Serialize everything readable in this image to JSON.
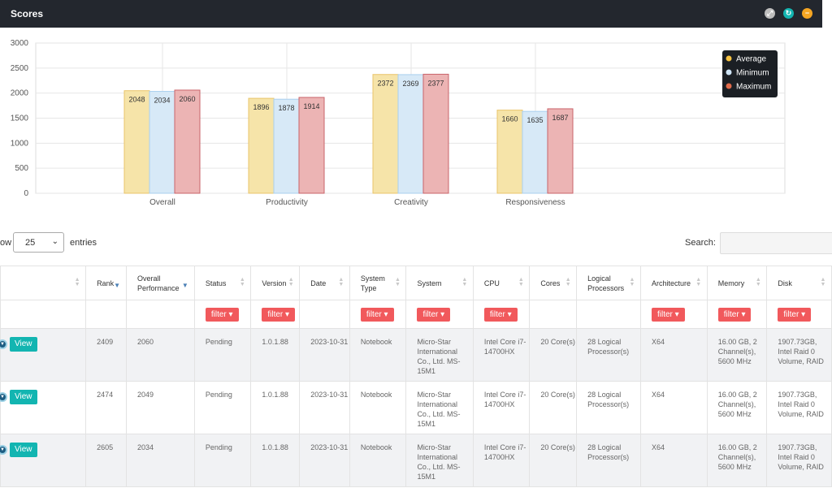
{
  "header": {
    "title": "Scores",
    "icons": [
      "expand-icon",
      "refresh-icon",
      "minimize-icon"
    ],
    "icon_colors": [
      "#bdbdbd",
      "#13b5b1",
      "#f5a623"
    ]
  },
  "chart_data": {
    "type": "bar",
    "categories": [
      "Overall",
      "Productivity",
      "Creativity",
      "Responsiveness"
    ],
    "series": [
      {
        "name": "Average",
        "values": [
          2048,
          1896,
          2372,
          1660
        ],
        "fill": "#f6e4a9",
        "stroke": "#e9c46a",
        "dot": "#f6c242"
      },
      {
        "name": "Minimum",
        "values": [
          2034,
          1878,
          2369,
          1635
        ],
        "fill": "#d7e9f7",
        "stroke": "#a9cfee",
        "dot": "#cfe4f5"
      },
      {
        "name": "Maximum",
        "values": [
          2060,
          1914,
          2377,
          1687
        ],
        "fill": "#ecb4b4",
        "stroke": "#c9636a",
        "dot": "#e06a4a"
      }
    ],
    "yticks": [
      0,
      500,
      1000,
      1500,
      2000,
      2500,
      3000
    ],
    "ylim": [
      0,
      3000
    ],
    "grid": true,
    "legend_position": "top-right"
  },
  "table": {
    "show_label": "ow",
    "page_size": "25",
    "entries_label": "entries",
    "search_label": "Search:",
    "filter_label": "filter",
    "view_label": "View",
    "columns": [
      {
        "key": "rank",
        "label": "Rank",
        "sort": "desc"
      },
      {
        "key": "overall",
        "label": "Overall Performance",
        "sort": "desc"
      },
      {
        "key": "status",
        "label": "Status",
        "sort": "both",
        "filter": true
      },
      {
        "key": "version",
        "label": "Version",
        "sort": "both",
        "filter": true
      },
      {
        "key": "date",
        "label": "Date",
        "sort": "both"
      },
      {
        "key": "system_type",
        "label": "System Type",
        "sort": "both",
        "filter": true
      },
      {
        "key": "system",
        "label": "System",
        "sort": "both",
        "filter": true
      },
      {
        "key": "cpu",
        "label": "CPU",
        "sort": "both",
        "filter": true
      },
      {
        "key": "cores",
        "label": "Cores",
        "sort": "both"
      },
      {
        "key": "logical",
        "label": "Logical Processors",
        "sort": "both"
      },
      {
        "key": "arch",
        "label": "Architecture",
        "sort": "both",
        "filter": true
      },
      {
        "key": "memory",
        "label": "Memory",
        "sort": "both",
        "filter": true
      },
      {
        "key": "disk",
        "label": "Disk",
        "sort": "both",
        "filter": true
      }
    ],
    "rows": [
      {
        "rank": "2409",
        "overall": "2060",
        "status": "Pending",
        "version": "1.0.1.88",
        "date": "2023-10-31",
        "system_type": "Notebook",
        "system": "Micro-Star International Co., Ltd. MS-15M1",
        "cpu": "Intel Core i7-14700HX",
        "cores": "20 Core(s)",
        "logical": "28 Logical Processor(s)",
        "arch": "X64",
        "memory": "16.00 GB, 2 Channel(s), 5600 MHz",
        "disk": "1907.73GB, Intel Raid 0 Volume, RAID"
      },
      {
        "rank": "2474",
        "overall": "2049",
        "status": "Pending",
        "version": "1.0.1.88",
        "date": "2023-10-31",
        "system_type": "Notebook",
        "system": "Micro-Star International Co., Ltd. MS-15M1",
        "cpu": "Intel Core i7-14700HX",
        "cores": "20 Core(s)",
        "logical": "28 Logical Processor(s)",
        "arch": "X64",
        "memory": "16.00 GB, 2 Channel(s), 5600 MHz",
        "disk": "1907.73GB, Intel Raid 0 Volume, RAID"
      },
      {
        "rank": "2605",
        "overall": "2034",
        "status": "Pending",
        "version": "1.0.1.88",
        "date": "2023-10-31",
        "system_type": "Notebook",
        "system": "Micro-Star International Co., Ltd. MS-15M1",
        "cpu": "Intel Core i7-14700HX",
        "cores": "20 Core(s)",
        "logical": "28 Logical Processor(s)",
        "arch": "X64",
        "memory": "16.00 GB, 2 Channel(s), 5600 MHz",
        "disk": "1907.73GB, Intel Raid 0 Volume, RAID"
      }
    ]
  }
}
